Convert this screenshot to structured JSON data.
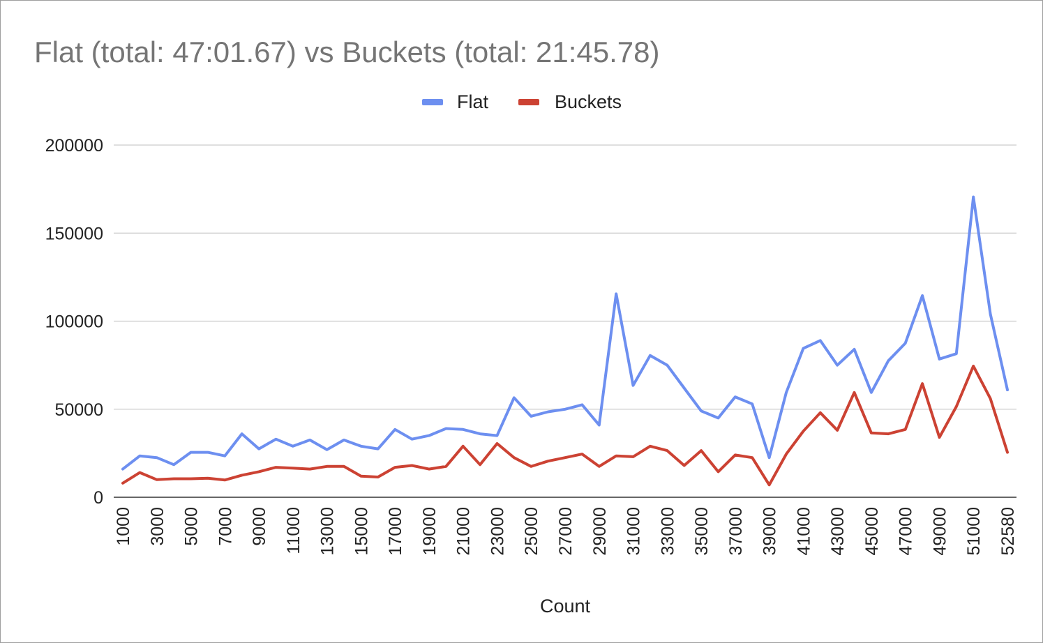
{
  "chart_data": {
    "type": "line",
    "title": "Flat (total: 47:01.67) vs Buckets (total: 21:45.78)",
    "xlabel": "Count",
    "ylabel": "",
    "ylim": [
      0,
      200000
    ],
    "yticks": [
      "0",
      "50000",
      "100000",
      "150000",
      "200000"
    ],
    "legend_position": "top-center",
    "grid": true,
    "x": [
      1000,
      2000,
      3000,
      4000,
      5000,
      6000,
      7000,
      8000,
      9000,
      10000,
      11000,
      12000,
      13000,
      14000,
      15000,
      16000,
      17000,
      18000,
      19000,
      20000,
      21000,
      22000,
      23000,
      24000,
      25000,
      26000,
      27000,
      28000,
      29000,
      30000,
      31000,
      32000,
      33000,
      34000,
      35000,
      36000,
      37000,
      38000,
      39000,
      40000,
      41000,
      42000,
      43000,
      44000,
      45000,
      46000,
      47000,
      48000,
      49000,
      50000,
      51000,
      52000,
      52580
    ],
    "xtick_labels": [
      "1000",
      "3000",
      "5000",
      "7000",
      "9000",
      "11000",
      "13000",
      "15000",
      "17000",
      "19000",
      "21000",
      "23000",
      "25000",
      "27000",
      "29000",
      "31000",
      "33000",
      "35000",
      "37000",
      "39000",
      "41000",
      "43000",
      "45000",
      "47000",
      "49000",
      "51000",
      "52580"
    ],
    "series": [
      {
        "name": "Flat",
        "color": "#6d8ff0",
        "values": [
          16000,
          23500,
          22500,
          18500,
          25500,
          25500,
          23500,
          36000,
          27500,
          33000,
          29000,
          32500,
          27000,
          32500,
          29000,
          27500,
          38500,
          33000,
          35000,
          39000,
          38500,
          36000,
          35000,
          56500,
          46000,
          48500,
          50000,
          52500,
          41000,
          115500,
          63500,
          80500,
          75000,
          62000,
          49000,
          45000,
          57000,
          53000,
          22500,
          59500,
          84500,
          89000,
          75000,
          84000,
          59500,
          77500,
          87500,
          114500,
          78500,
          81500,
          170500,
          104000,
          61000
        ]
      },
      {
        "name": "Buckets",
        "color": "#cc4233",
        "values": [
          8000,
          14000,
          10000,
          10500,
          10500,
          10800,
          9800,
          12500,
          14500,
          17000,
          16500,
          16000,
          17500,
          17500,
          12000,
          11500,
          17000,
          18000,
          16000,
          17500,
          29000,
          18500,
          30500,
          22500,
          17500,
          20500,
          22500,
          24500,
          17500,
          23500,
          23000,
          29000,
          26500,
          18000,
          26500,
          14500,
          24000,
          22500,
          7000,
          24500,
          37500,
          48000,
          38000,
          59500,
          36500,
          36000,
          38500,
          64500,
          34000,
          51500,
          74500,
          56000,
          25500
        ]
      }
    ]
  }
}
